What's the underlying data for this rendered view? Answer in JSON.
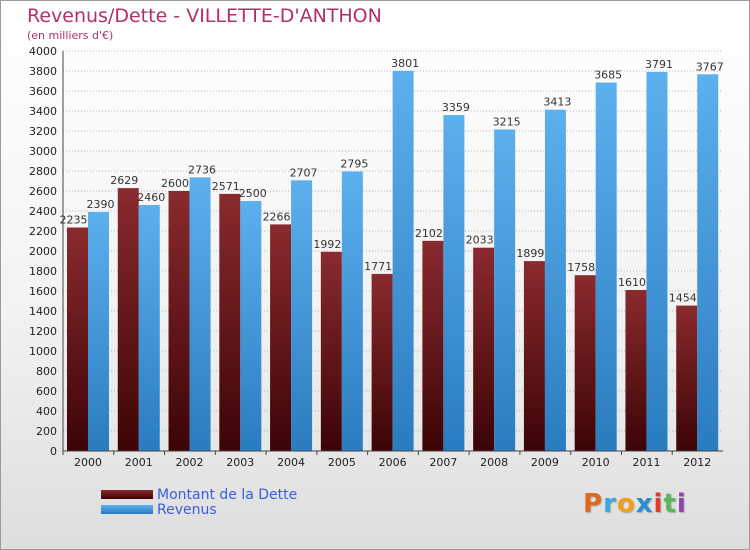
{
  "title": "Revenus/Dette - VILLETTE-D'ANTHON",
  "subtitle": "(en milliers d'€)",
  "logo": {
    "text": "Proxiti",
    "colors": [
      "#e06a1b",
      "#3aa7e0",
      "#f0a01b",
      "#2a8ed0",
      "#e03a2a",
      "#5cb85c",
      "#8e44ad"
    ]
  },
  "colors": {
    "dette": "#6e1b1e",
    "revenus": "#4ea3e3",
    "axis": "#333333",
    "grid": "#888888"
  },
  "chart_data": {
    "type": "bar",
    "categories": [
      "2000",
      "2001",
      "2002",
      "2003",
      "2004",
      "2005",
      "2006",
      "2007",
      "2008",
      "2009",
      "2010",
      "2011",
      "2012"
    ],
    "series": [
      {
        "name": "Montant de la Dette",
        "values": [
          2235,
          2629,
          2600,
          2571,
          2266,
          1992,
          1771,
          2102,
          2033,
          1899,
          1758,
          1610,
          1454
        ],
        "labels": [
          "2235",
          "2629",
          "2600",
          "2571",
          "2266",
          "1992",
          "1771",
          "2102",
          "2033",
          "1899",
          "1758",
          "1610",
          "1454"
        ]
      },
      {
        "name": "Revenus",
        "values": [
          2390,
          2460,
          2736,
          2500,
          2707,
          2795,
          3801,
          3359,
          3215,
          3413,
          3685,
          3791,
          3767
        ],
        "labels": [
          "2390",
          "2460",
          "2736",
          "2500",
          "2707",
          "2795",
          "3801",
          "3359",
          "3215",
          "3413",
          "3685",
          "3791",
          "3767"
        ]
      }
    ],
    "yticks": [
      "0",
      "200",
      "400",
      "600",
      "800",
      "1000",
      "1200",
      "1400",
      "1600",
      "1800",
      "2000",
      "2200",
      "2400",
      "2600",
      "2800",
      "3000",
      "3200",
      "3400",
      "3600",
      "3800",
      "4000"
    ],
    "ylim": [
      0,
      4000
    ],
    "grid": true,
    "legend": "bottom-left"
  }
}
